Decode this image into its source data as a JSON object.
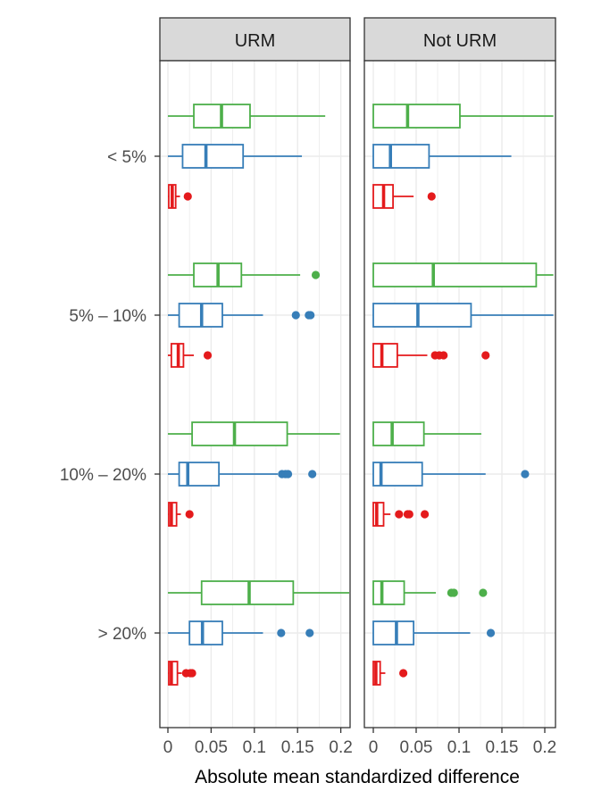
{
  "chart_data": {
    "type": "boxplot",
    "orientation": "horizontal",
    "xlabel": "Absolute mean standardized difference",
    "ylabel": "",
    "xlim": [
      0,
      0.21
    ],
    "x_ticks": [
      0,
      0.05,
      0.1,
      0.15,
      0.2
    ],
    "x_tick_labels": [
      "0",
      "0.05",
      "0.1",
      "0.15",
      "0.2"
    ],
    "categories": [
      "< 5%",
      "5% – 10%",
      "10% – 20%",
      "> 20%"
    ],
    "panels": [
      "URM",
      "Not URM"
    ],
    "series_colors": {
      "green": "#4daf4a",
      "blue": "#377eb8",
      "red": "#e41a1c"
    },
    "boxes": [
      {
        "panel": 0,
        "category": 0,
        "series": "green",
        "min": 0.0,
        "q1": 0.03,
        "median": 0.062,
        "q3": 0.095,
        "max": 0.182,
        "outliers": []
      },
      {
        "panel": 0,
        "category": 0,
        "series": "blue",
        "min": 0.0,
        "q1": 0.017,
        "median": 0.044,
        "q3": 0.087,
        "max": 0.155,
        "outliers": []
      },
      {
        "panel": 0,
        "category": 0,
        "series": "red",
        "min": 0.0,
        "q1": 0.001,
        "median": 0.005,
        "q3": 0.009,
        "max": 0.014,
        "outliers": [
          0.023
        ]
      },
      {
        "panel": 0,
        "category": 1,
        "series": "green",
        "min": 0.0,
        "q1": 0.03,
        "median": 0.058,
        "q3": 0.085,
        "max": 0.153,
        "outliers": [
          0.171
        ]
      },
      {
        "panel": 0,
        "category": 1,
        "series": "blue",
        "min": 0.0,
        "q1": 0.013,
        "median": 0.039,
        "q3": 0.063,
        "max": 0.11,
        "outliers": [
          0.148,
          0.163,
          0.165
        ]
      },
      {
        "panel": 0,
        "category": 1,
        "series": "red",
        "min": 0.0,
        "q1": 0.004,
        "median": 0.012,
        "q3": 0.018,
        "max": 0.03,
        "outliers": [
          0.046
        ]
      },
      {
        "panel": 0,
        "category": 2,
        "series": "green",
        "min": 0.0,
        "q1": 0.028,
        "median": 0.077,
        "q3": 0.138,
        "max": 0.199,
        "outliers": []
      },
      {
        "panel": 0,
        "category": 2,
        "series": "blue",
        "min": 0.0,
        "q1": 0.013,
        "median": 0.023,
        "q3": 0.059,
        "max": 0.127,
        "outliers": [
          0.132,
          0.136,
          0.139,
          0.167
        ]
      },
      {
        "panel": 0,
        "category": 2,
        "series": "red",
        "min": 0.0,
        "q1": 0.001,
        "median": 0.004,
        "q3": 0.01,
        "max": 0.015,
        "outliers": [
          0.025
        ]
      },
      {
        "panel": 0,
        "category": 3,
        "series": "green",
        "min": 0.0,
        "q1": 0.039,
        "median": 0.094,
        "q3": 0.145,
        "max": 0.212,
        "outliers": []
      },
      {
        "panel": 0,
        "category": 3,
        "series": "blue",
        "min": 0.0,
        "q1": 0.025,
        "median": 0.04,
        "q3": 0.063,
        "max": 0.11,
        "outliers": [
          0.131,
          0.164
        ]
      },
      {
        "panel": 0,
        "category": 3,
        "series": "red",
        "min": 0.0,
        "q1": 0.001,
        "median": 0.004,
        "q3": 0.011,
        "max": 0.016,
        "outliers": [
          0.021,
          0.026,
          0.028
        ]
      },
      {
        "panel": 1,
        "category": 0,
        "series": "green",
        "min": 0.0,
        "q1": 0.0,
        "median": 0.04,
        "q3": 0.101,
        "max": 0.21,
        "outliers": []
      },
      {
        "panel": 1,
        "category": 0,
        "series": "blue",
        "min": 0.0,
        "q1": 0.0,
        "median": 0.02,
        "q3": 0.065,
        "max": 0.161,
        "outliers": []
      },
      {
        "panel": 1,
        "category": 0,
        "series": "red",
        "min": 0.0,
        "q1": 0.0,
        "median": 0.012,
        "q3": 0.023,
        "max": 0.047,
        "outliers": [
          0.068
        ]
      },
      {
        "panel": 1,
        "category": 1,
        "series": "green",
        "min": 0.0,
        "q1": 0.0,
        "median": 0.07,
        "q3": 0.19,
        "max": 0.21,
        "outliers": []
      },
      {
        "panel": 1,
        "category": 1,
        "series": "blue",
        "min": 0.0,
        "q1": 0.0,
        "median": 0.052,
        "q3": 0.114,
        "max": 0.21,
        "outliers": []
      },
      {
        "panel": 1,
        "category": 1,
        "series": "red",
        "min": 0.0,
        "q1": 0.0,
        "median": 0.01,
        "q3": 0.028,
        "max": 0.063,
        "outliers": [
          0.072,
          0.077,
          0.082,
          0.131
        ]
      },
      {
        "panel": 1,
        "category": 2,
        "series": "green",
        "min": 0.0,
        "q1": 0.0,
        "median": 0.022,
        "q3": 0.059,
        "max": 0.126,
        "outliers": []
      },
      {
        "panel": 1,
        "category": 2,
        "series": "blue",
        "min": 0.0,
        "q1": 0.0,
        "median": 0.009,
        "q3": 0.057,
        "max": 0.131,
        "outliers": [
          0.177
        ]
      },
      {
        "panel": 1,
        "category": 2,
        "series": "red",
        "min": 0.0,
        "q1": 0.0,
        "median": 0.004,
        "q3": 0.012,
        "max": 0.02,
        "outliers": [
          0.03,
          0.04,
          0.042,
          0.06
        ]
      },
      {
        "panel": 1,
        "category": 3,
        "series": "green",
        "min": 0.0,
        "q1": 0.0,
        "median": 0.01,
        "q3": 0.036,
        "max": 0.073,
        "outliers": [
          0.091,
          0.094,
          0.128
        ]
      },
      {
        "panel": 1,
        "category": 3,
        "series": "blue",
        "min": 0.0,
        "q1": 0.0,
        "median": 0.027,
        "q3": 0.047,
        "max": 0.113,
        "outliers": [
          0.137
        ]
      },
      {
        "panel": 1,
        "category": 3,
        "series": "red",
        "min": 0.0,
        "q1": 0.0,
        "median": 0.003,
        "q3": 0.008,
        "max": 0.014,
        "outliers": [
          0.035
        ]
      }
    ]
  }
}
